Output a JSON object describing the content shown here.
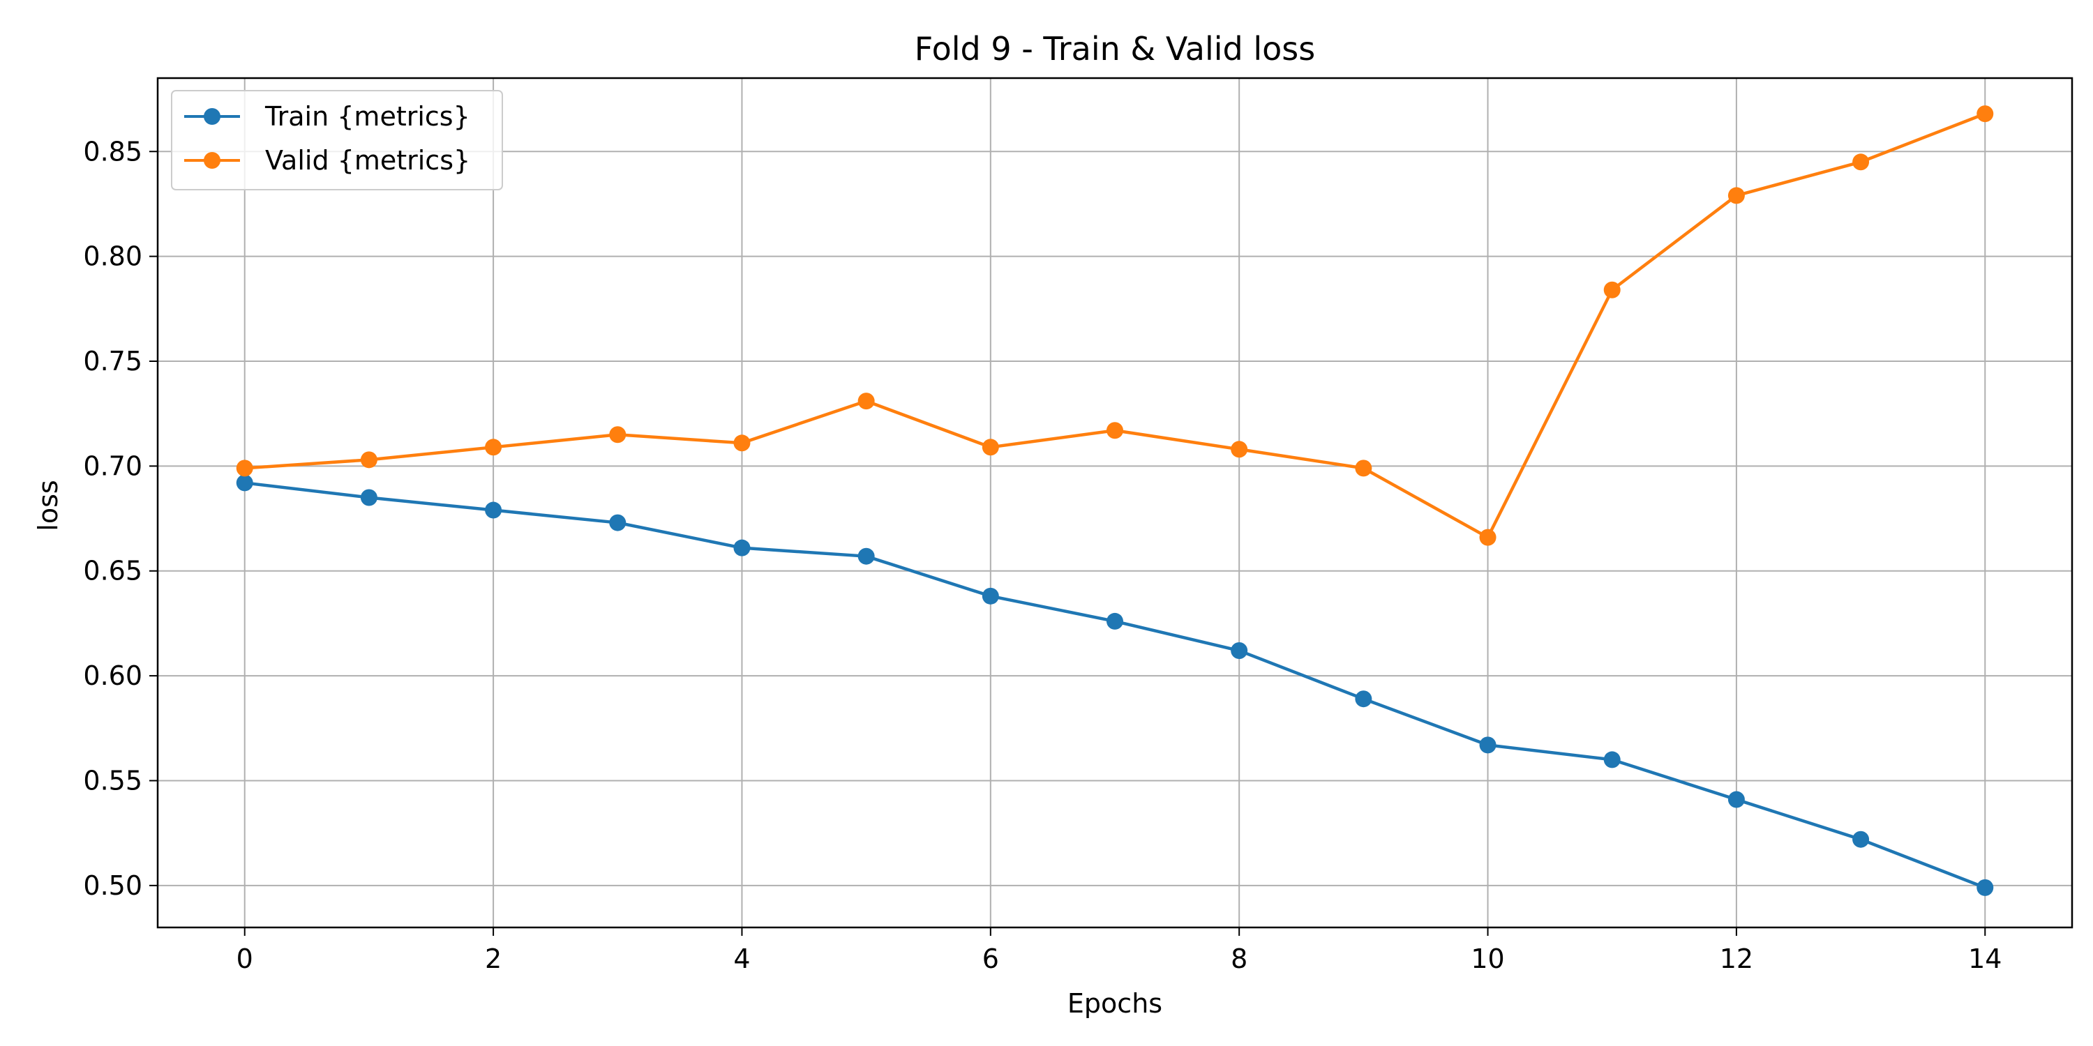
{
  "chart_data": {
    "type": "line",
    "title": "Fold 9 - Train & Valid loss",
    "xlabel": "Epochs",
    "ylabel": "loss",
    "x": [
      0,
      1,
      2,
      3,
      4,
      5,
      6,
      7,
      8,
      9,
      10,
      11,
      12,
      13,
      14
    ],
    "xlim": [
      -0.7,
      14.7
    ],
    "ylim": [
      0.48,
      0.885
    ],
    "xticks": [
      0,
      2,
      4,
      6,
      8,
      10,
      12,
      14
    ],
    "yticks": [
      0.5,
      0.55,
      0.6,
      0.65,
      0.7,
      0.75,
      0.8,
      0.85
    ],
    "xtick_labels": [
      "0",
      "2",
      "4",
      "6",
      "8",
      "10",
      "12",
      "14"
    ],
    "ytick_labels": [
      "0.50",
      "0.55",
      "0.60",
      "0.65",
      "0.70",
      "0.75",
      "0.80",
      "0.85"
    ],
    "grid": true,
    "legend_position": "top-left",
    "series": [
      {
        "name": "Train {metrics}",
        "color": "#1f77b4",
        "marker": "circle",
        "values": [
          0.692,
          0.685,
          0.679,
          0.673,
          0.661,
          0.657,
          0.638,
          0.626,
          0.612,
          0.589,
          0.567,
          0.56,
          0.541,
          0.522,
          0.499
        ]
      },
      {
        "name": "Valid {metrics}",
        "color": "#ff7f0e",
        "marker": "circle",
        "values": [
          0.699,
          0.703,
          0.709,
          0.715,
          0.711,
          0.731,
          0.709,
          0.717,
          0.708,
          0.699,
          0.666,
          0.784,
          0.829,
          0.845,
          0.868
        ]
      }
    ]
  }
}
